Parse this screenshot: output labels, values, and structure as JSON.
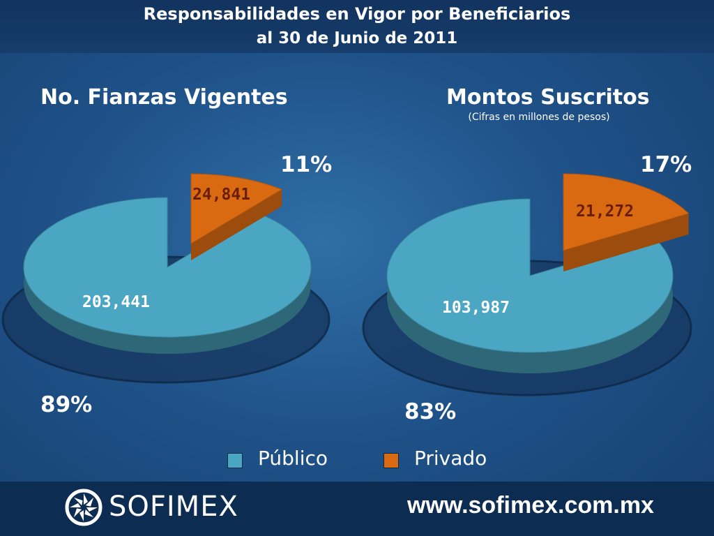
{
  "header": {
    "title_line1": "Responsabilidades en Vigor por Beneficiarios",
    "title_line2": "al 30 de Junio de 2011"
  },
  "chart_data": [
    {
      "type": "pie",
      "title": "No. Fianzas Vigentes",
      "subtitle": "",
      "categories": [
        "Público",
        "Privado"
      ],
      "values": [
        203441,
        24841
      ],
      "value_labels": [
        "203,441",
        "24,841"
      ],
      "percent_labels": [
        "89%",
        "11%"
      ],
      "colors": [
        "#4aa6c2",
        "#d96a12"
      ]
    },
    {
      "type": "pie",
      "title": "Montos Suscritos",
      "subtitle": "(Cifras en millones de pesos)",
      "categories": [
        "Público",
        "Privado"
      ],
      "values": [
        103987,
        21272
      ],
      "value_labels": [
        "103,987",
        "21,272"
      ],
      "percent_labels": [
        "83%",
        "17%"
      ],
      "colors": [
        "#4aa6c2",
        "#d96a12"
      ]
    }
  ],
  "legend": [
    {
      "label": "Público",
      "color": "#4aa6c2"
    },
    {
      "label": "Privado",
      "color": "#d96a12"
    }
  ],
  "footer": {
    "brand": "SOFIMEX",
    "website": "www.sofimex.com.mx",
    "logo_icon": "sofimex-logo-icon"
  }
}
